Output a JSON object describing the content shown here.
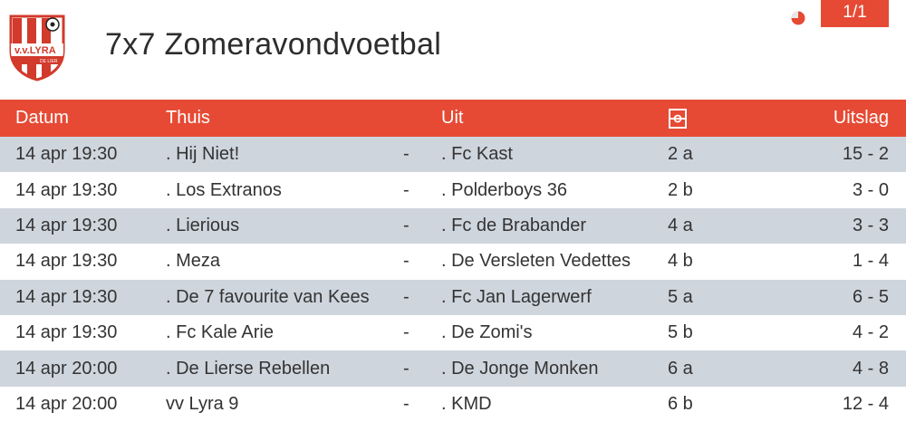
{
  "header": {
    "title": "7x7 Zomeravondvoetbal",
    "page_indicator": "1/1",
    "logo_text": "v.v.LYRA",
    "logo_subtext": "DE LIER"
  },
  "table": {
    "columns": {
      "datum": "Datum",
      "thuis": "Thuis",
      "uit": "Uit",
      "veld_icon": "field-icon",
      "uitslag": "Uitslag"
    },
    "rows": [
      {
        "datum": "14 apr 19:30",
        "thuis": ". Hij Niet!",
        "sep": "-",
        "uit": ". Fc Kast",
        "veld": "2 a",
        "uitslag": "15 - 2"
      },
      {
        "datum": "14 apr 19:30",
        "thuis": ". Los Extranos",
        "sep": "-",
        "uit": ". Polderboys 36",
        "veld": "2 b",
        "uitslag": "3 - 0"
      },
      {
        "datum": "14 apr 19:30",
        "thuis": ". Lierious",
        "sep": "-",
        "uit": ". Fc de Brabander",
        "veld": "4 a",
        "uitslag": "3 - 3"
      },
      {
        "datum": "14 apr 19:30",
        "thuis": ". Meza",
        "sep": "-",
        "uit": ". De Versleten Vedettes",
        "veld": "4 b",
        "uitslag": "1 - 4"
      },
      {
        "datum": "14 apr 19:30",
        "thuis": ". De 7 favourite van Kees",
        "sep": "-",
        "uit": ". Fc Jan Lagerwerf",
        "veld": "5 a",
        "uitslag": "6 - 5"
      },
      {
        "datum": "14 apr 19:30",
        "thuis": ". Fc Kale Arie",
        "sep": "-",
        "uit": ". De Zomi's",
        "veld": "5 b",
        "uitslag": "4 - 2"
      },
      {
        "datum": "14 apr 20:00",
        "thuis": ". De Lierse Rebellen",
        "sep": "-",
        "uit": ". De Jonge Monken",
        "veld": "6 a",
        "uitslag": "4 - 8"
      },
      {
        "datum": "14 apr 20:00",
        "thuis": "vv Lyra 9",
        "sep": "-",
        "uit": ". KMD",
        "veld": "6 b",
        "uitslag": "12 - 4"
      }
    ]
  },
  "colors": {
    "accent": "#e64a34",
    "row_alt": "#cfd5dd",
    "text": "#333333"
  }
}
